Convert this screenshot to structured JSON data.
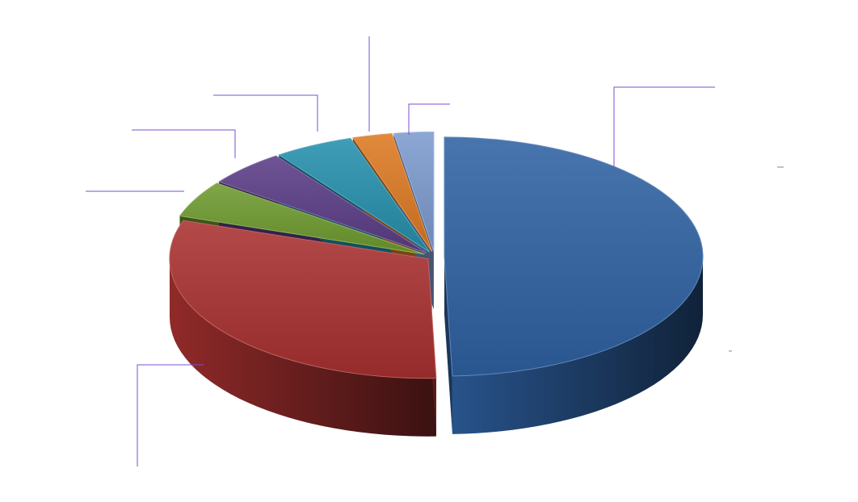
{
  "chart_data": {
    "type": "pie",
    "variant": "3d-exploded",
    "title": "",
    "categories": [
      "",
      "",
      "",
      "",
      "",
      "",
      ""
    ],
    "values": [
      50,
      31,
      5,
      5,
      5,
      2.5,
      2.5
    ],
    "colors": [
      "#2f62a3",
      "#a93130",
      "#6e9a2f",
      "#5b3d86",
      "#2690ad",
      "#dd7a22",
      "#7d9bcf"
    ],
    "data_labels": [],
    "legend": "none",
    "leader_line_color": "#7b4fd0"
  }
}
